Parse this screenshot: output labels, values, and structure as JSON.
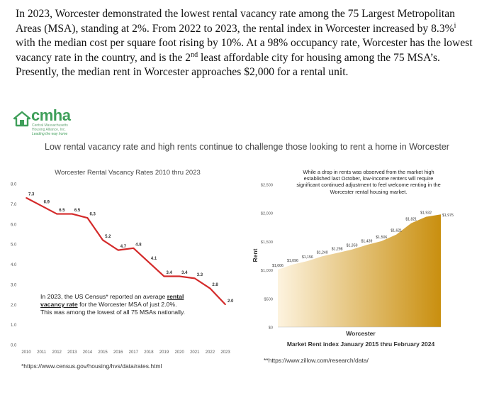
{
  "intro": {
    "p1": "In 2023, Worcester demonstrated the lowest rental vacancy rate among the 75 Largest Metropolitan Areas (MSA), standing at 2%. From 2022 to 2023, the rental index in Worcester increased by 8.3%",
    "p1_mark": "i",
    "p2": " with the median cost per square foot rising by 10%. At a 98% occupancy rate, Worcester has the lowest vacancy rate in the country, and is the 2",
    "p2_sup": "nd",
    "p3": " least affordable city for housing among the 75 MSA’s. Presently, the median rent in Worcester approaches $2,000 for a rental unit."
  },
  "logo": {
    "name": "cmha",
    "subtitle": "Central Massachusetts Housing Alliance, Inc.",
    "tagline": "Leading the way home"
  },
  "headline": "Low rental vacancy rate and high rents continue to challenge those looking to rent a home in Worcester",
  "chart_data": [
    {
      "type": "line",
      "title": "Worcester Rental Vacancy Rates 2010 thru 2023",
      "x": [
        "2010",
        "2011",
        "2012",
        "2013",
        "2014",
        "2015",
        "2016",
        "2017",
        "2018",
        "2019",
        "2020",
        "2021",
        "2022",
        "2023"
      ],
      "values": [
        7.3,
        6.9,
        6.5,
        6.5,
        6.3,
        5.2,
        4.7,
        4.8,
        4.1,
        3.4,
        3.4,
        3.3,
        2.8,
        2.0
      ],
      "data_labels": [
        "7.3",
        "6.9",
        "6.5",
        "6.5",
        "6.3",
        "5.2",
        "4.7",
        "4.8",
        "4.1",
        "3.4",
        "3.4",
        "3.3",
        "2.8",
        "2.0"
      ],
      "y_ticks": [
        "0.0",
        "1.0",
        "2.0",
        "3.0",
        "4.0",
        "5.0",
        "6.0",
        "7.0",
        "8.0"
      ],
      "ylim": [
        0,
        8
      ],
      "line_color": "#d42a2a",
      "grid": false,
      "annotation": {
        "before": "In 2023, the US Census* reported an average ",
        "bold": "rental vacancy rate",
        "after": " for the Worcester MSA of just 2.0%. This was among the lowest of all 75 MSAs nationally."
      },
      "footnote": "*https://www.census.gov/housing/hvs/data/rates.html"
    },
    {
      "type": "area",
      "title": "Market Rent index January 2015 thru February 2024",
      "xlabel": "Worcester",
      "ylabel": "Rent",
      "y_ticks": [
        "$0",
        "$500",
        "$1,000",
        "$1,500",
        "$2,000",
        "$2,500"
      ],
      "ylim": [
        0,
        2500
      ],
      "points": [
        1006,
        1096,
        1156,
        1240,
        1298,
        1359,
        1439,
        1506,
        1621,
        1821,
        1932,
        1975
      ],
      "labels": [
        "$1,006",
        "$1,096",
        "$1,156",
        "$1,240",
        "$1,298",
        "$1,359",
        "$1,439",
        "$1,506",
        "$1,621",
        "$1,821",
        "$1,932",
        "$1,975"
      ],
      "gradient_colors": [
        "#fdf3df",
        "#c98f0f"
      ],
      "annotation": "While a drop in rents was observed from the market high established last October, low-income renters will require significant continued adjustment to feel welcome renting in the Worcester rental housing market.",
      "footnote": "**https://www.zillow.com/research/data/"
    }
  ]
}
